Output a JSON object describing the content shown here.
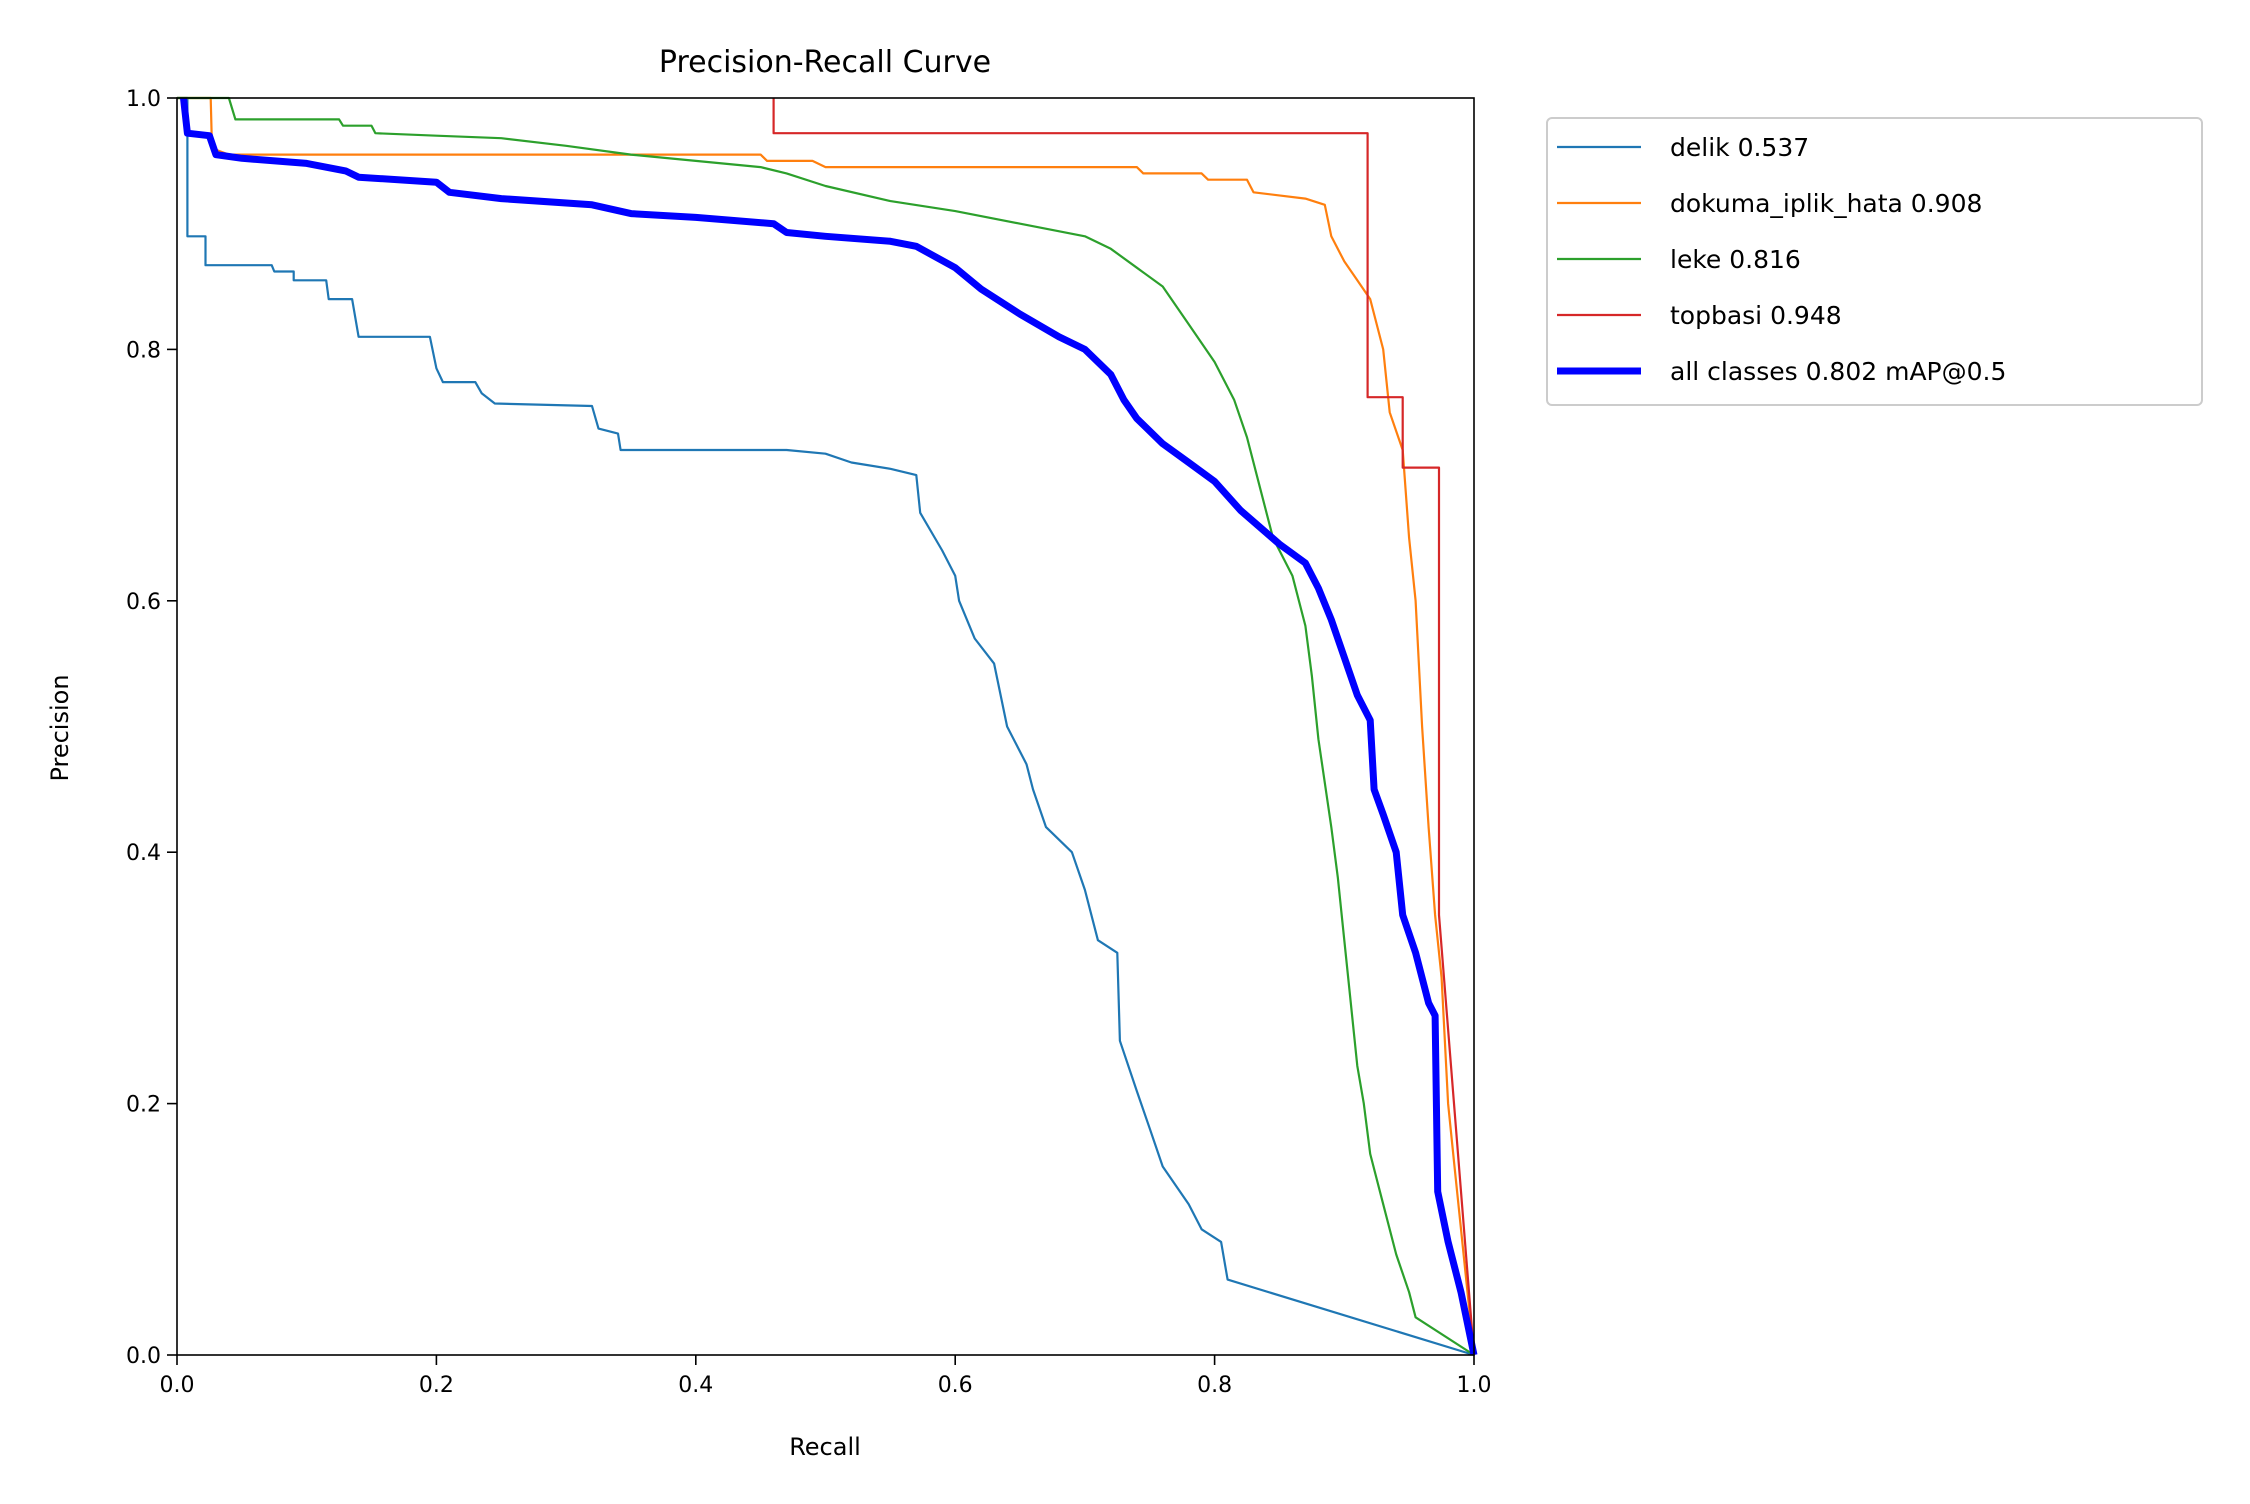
{
  "chart_data": {
    "type": "line",
    "title": "Precision-Recall Curve",
    "xlabel": "Recall",
    "ylabel": "Precision",
    "xlim": [
      0,
      1
    ],
    "ylim": [
      0,
      1
    ],
    "xticks": [
      "0.0",
      "0.2",
      "0.4",
      "0.6",
      "0.8",
      "1.0"
    ],
    "yticks": [
      "0.0",
      "0.2",
      "0.4",
      "0.6",
      "0.8",
      "1.0"
    ],
    "grid": false,
    "legend_position": "outside-top-right",
    "series": [
      {
        "name": "delik 0.537",
        "color": "#1f77b4",
        "width": "thin",
        "points": [
          [
            0,
            1
          ],
          [
            0.008,
            1
          ],
          [
            0.008,
            0.89
          ],
          [
            0.022,
            0.89
          ],
          [
            0.022,
            0.867
          ],
          [
            0.073,
            0.867
          ],
          [
            0.075,
            0.862
          ],
          [
            0.09,
            0.862
          ],
          [
            0.09,
            0.855
          ],
          [
            0.115,
            0.855
          ],
          [
            0.117,
            0.84
          ],
          [
            0.135,
            0.84
          ],
          [
            0.14,
            0.81
          ],
          [
            0.195,
            0.81
          ],
          [
            0.2,
            0.785
          ],
          [
            0.205,
            0.774
          ],
          [
            0.23,
            0.774
          ],
          [
            0.235,
            0.765
          ],
          [
            0.245,
            0.757
          ],
          [
            0.32,
            0.755
          ],
          [
            0.325,
            0.737
          ],
          [
            0.34,
            0.733
          ],
          [
            0.342,
            0.72
          ],
          [
            0.47,
            0.72
          ],
          [
            0.5,
            0.717
          ],
          [
            0.52,
            0.71
          ],
          [
            0.55,
            0.705
          ],
          [
            0.57,
            0.7
          ],
          [
            0.573,
            0.67
          ],
          [
            0.59,
            0.64
          ],
          [
            0.6,
            0.62
          ],
          [
            0.603,
            0.6
          ],
          [
            0.615,
            0.57
          ],
          [
            0.63,
            0.55
          ],
          [
            0.64,
            0.5
          ],
          [
            0.655,
            0.47
          ],
          [
            0.66,
            0.45
          ],
          [
            0.67,
            0.42
          ],
          [
            0.69,
            0.4
          ],
          [
            0.7,
            0.37
          ],
          [
            0.71,
            0.33
          ],
          [
            0.725,
            0.32
          ],
          [
            0.727,
            0.25
          ],
          [
            0.74,
            0.21
          ],
          [
            0.75,
            0.18
          ],
          [
            0.76,
            0.15
          ],
          [
            0.78,
            0.12
          ],
          [
            0.79,
            0.1
          ],
          [
            0.805,
            0.09
          ],
          [
            0.81,
            0.06
          ],
          [
            1,
            0
          ]
        ]
      },
      {
        "name": "dokuma_iplik_hata 0.908",
        "color": "#ff7f0e",
        "width": "thin",
        "points": [
          [
            0,
            1
          ],
          [
            0.026,
            1
          ],
          [
            0.027,
            0.96
          ],
          [
            0.04,
            0.955
          ],
          [
            0.45,
            0.955
          ],
          [
            0.455,
            0.95
          ],
          [
            0.49,
            0.95
          ],
          [
            0.5,
            0.945
          ],
          [
            0.74,
            0.945
          ],
          [
            0.745,
            0.94
          ],
          [
            0.79,
            0.94
          ],
          [
            0.795,
            0.935
          ],
          [
            0.825,
            0.935
          ],
          [
            0.83,
            0.925
          ],
          [
            0.87,
            0.92
          ],
          [
            0.885,
            0.915
          ],
          [
            0.89,
            0.89
          ],
          [
            0.9,
            0.87
          ],
          [
            0.91,
            0.855
          ],
          [
            0.92,
            0.84
          ],
          [
            0.93,
            0.8
          ],
          [
            0.935,
            0.75
          ],
          [
            0.945,
            0.72
          ],
          [
            0.95,
            0.65
          ],
          [
            0.955,
            0.6
          ],
          [
            0.96,
            0.5
          ],
          [
            0.965,
            0.42
          ],
          [
            0.97,
            0.35
          ],
          [
            0.975,
            0.3
          ],
          [
            0.98,
            0.2
          ],
          [
            0.985,
            0.15
          ],
          [
            0.99,
            0.1
          ],
          [
            1,
            0
          ]
        ]
      },
      {
        "name": "leke 0.816",
        "color": "#2ca02c",
        "width": "thin",
        "points": [
          [
            0,
            1
          ],
          [
            0.04,
            1
          ],
          [
            0.045,
            0.983
          ],
          [
            0.125,
            0.983
          ],
          [
            0.128,
            0.978
          ],
          [
            0.15,
            0.978
          ],
          [
            0.153,
            0.972
          ],
          [
            0.2,
            0.97
          ],
          [
            0.25,
            0.968
          ],
          [
            0.3,
            0.962
          ],
          [
            0.35,
            0.955
          ],
          [
            0.4,
            0.95
          ],
          [
            0.45,
            0.945
          ],
          [
            0.47,
            0.94
          ],
          [
            0.5,
            0.93
          ],
          [
            0.55,
            0.918
          ],
          [
            0.6,
            0.91
          ],
          [
            0.65,
            0.9
          ],
          [
            0.7,
            0.89
          ],
          [
            0.72,
            0.88
          ],
          [
            0.74,
            0.865
          ],
          [
            0.76,
            0.85
          ],
          [
            0.78,
            0.82
          ],
          [
            0.8,
            0.79
          ],
          [
            0.815,
            0.76
          ],
          [
            0.825,
            0.73
          ],
          [
            0.835,
            0.69
          ],
          [
            0.845,
            0.65
          ],
          [
            0.86,
            0.62
          ],
          [
            0.87,
            0.58
          ],
          [
            0.875,
            0.54
          ],
          [
            0.88,
            0.49
          ],
          [
            0.89,
            0.42
          ],
          [
            0.895,
            0.38
          ],
          [
            0.9,
            0.33
          ],
          [
            0.905,
            0.28
          ],
          [
            0.91,
            0.23
          ],
          [
            0.915,
            0.2
          ],
          [
            0.92,
            0.16
          ],
          [
            0.93,
            0.12
          ],
          [
            0.94,
            0.08
          ],
          [
            0.95,
            0.05
          ],
          [
            0.955,
            0.03
          ],
          [
            1,
            0
          ]
        ]
      },
      {
        "name": "topbasi 0.948",
        "color": "#d62728",
        "width": "thin",
        "points": [
          [
            0.46,
            1
          ],
          [
            0.46,
            0.972
          ],
          [
            0.918,
            0.972
          ],
          [
            0.918,
            0.762
          ],
          [
            0.945,
            0.762
          ],
          [
            0.945,
            0.706
          ],
          [
            0.973,
            0.706
          ],
          [
            0.973,
            0.35
          ],
          [
            1,
            0
          ]
        ]
      },
      {
        "name": "all classes 0.802 mAP@0.5",
        "color": "#0000ff",
        "width": "thick",
        "points": [
          [
            0.005,
            1
          ],
          [
            0.008,
            0.972
          ],
          [
            0.025,
            0.97
          ],
          [
            0.03,
            0.955
          ],
          [
            0.05,
            0.952
          ],
          [
            0.1,
            0.948
          ],
          [
            0.13,
            0.942
          ],
          [
            0.14,
            0.937
          ],
          [
            0.2,
            0.933
          ],
          [
            0.21,
            0.925
          ],
          [
            0.25,
            0.92
          ],
          [
            0.32,
            0.915
          ],
          [
            0.35,
            0.908
          ],
          [
            0.4,
            0.905
          ],
          [
            0.46,
            0.9
          ],
          [
            0.47,
            0.893
          ],
          [
            0.5,
            0.89
          ],
          [
            0.55,
            0.886
          ],
          [
            0.57,
            0.882
          ],
          [
            0.6,
            0.865
          ],
          [
            0.62,
            0.848
          ],
          [
            0.65,
            0.828
          ],
          [
            0.68,
            0.81
          ],
          [
            0.7,
            0.8
          ],
          [
            0.72,
            0.78
          ],
          [
            0.73,
            0.76
          ],
          [
            0.74,
            0.745
          ],
          [
            0.76,
            0.725
          ],
          [
            0.78,
            0.71
          ],
          [
            0.8,
            0.695
          ],
          [
            0.82,
            0.672
          ],
          [
            0.85,
            0.645
          ],
          [
            0.87,
            0.63
          ],
          [
            0.88,
            0.61
          ],
          [
            0.89,
            0.585
          ],
          [
            0.9,
            0.555
          ],
          [
            0.91,
            0.525
          ],
          [
            0.92,
            0.505
          ],
          [
            0.923,
            0.45
          ],
          [
            0.93,
            0.43
          ],
          [
            0.94,
            0.4
          ],
          [
            0.945,
            0.35
          ],
          [
            0.955,
            0.32
          ],
          [
            0.965,
            0.28
          ],
          [
            0.97,
            0.27
          ],
          [
            0.972,
            0.13
          ],
          [
            0.98,
            0.09
          ],
          [
            0.99,
            0.05
          ],
          [
            1,
            0
          ]
        ]
      }
    ]
  }
}
